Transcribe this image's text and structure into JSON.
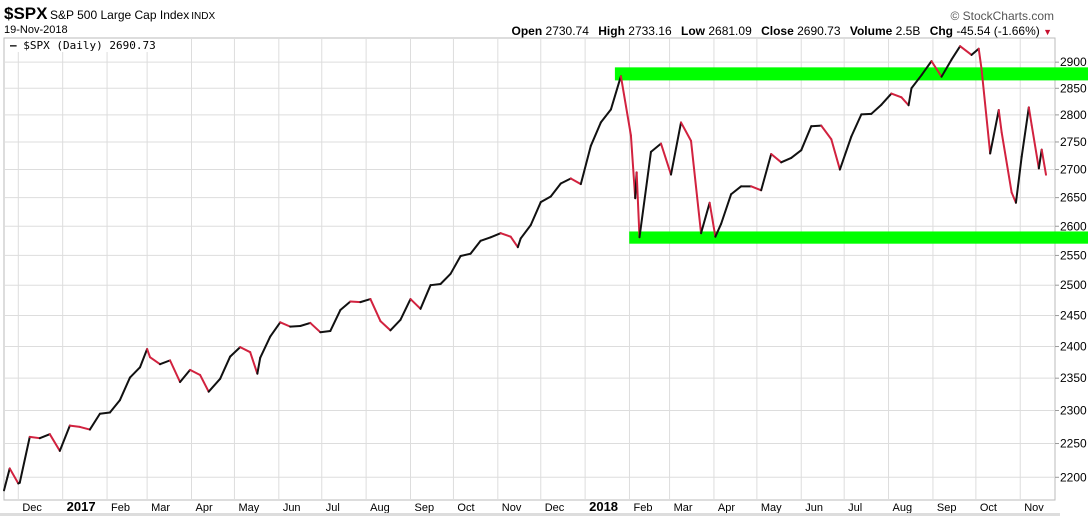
{
  "header": {
    "symbol": "$SPX",
    "name": "S&P 500 Large Cap Index",
    "exchange": "INDX",
    "date": "19-Nov-2018",
    "brand": "© StockCharts.com",
    "open_label": "Open",
    "open": "2730.74",
    "high_label": "High",
    "high": "2733.16",
    "low_label": "Low",
    "low": "2681.09",
    "close_label": "Close",
    "close": "2690.73",
    "volume_label": "Volume",
    "volume": "2.5B",
    "chg_label": "Chg",
    "chg": "-45.54 (-1.66%)",
    "chg_icon": "triangle-down-icon"
  },
  "legend": {
    "label": "$SPX (Daily) 2690.73"
  },
  "colors": {
    "up": "#111111",
    "down": "#d2223f",
    "band": "#00ff00",
    "grid": "#dddddd"
  },
  "chart_data": {
    "type": "line",
    "scale": "log",
    "ylim": [
      2167,
      2947
    ],
    "yticks": [
      2200,
      2250,
      2300,
      2350,
      2400,
      2450,
      2500,
      2550,
      2600,
      2650,
      2700,
      2750,
      2800,
      2850,
      2900
    ],
    "xticks": [
      {
        "label": "Dec",
        "date": "2016-12-01"
      },
      {
        "label": "2017",
        "date": "2017-01-01",
        "bold": true
      },
      {
        "label": "Feb",
        "date": "2017-02-01"
      },
      {
        "label": "Mar",
        "date": "2017-03-01"
      },
      {
        "label": "Apr",
        "date": "2017-04-01"
      },
      {
        "label": "May",
        "date": "2017-05-01"
      },
      {
        "label": "Jun",
        "date": "2017-06-01"
      },
      {
        "label": "Jul",
        "date": "2017-07-01"
      },
      {
        "label": "Aug",
        "date": "2017-08-01"
      },
      {
        "label": "Sep",
        "date": "2017-09-01"
      },
      {
        "label": "Oct",
        "date": "2017-10-01"
      },
      {
        "label": "Nov",
        "date": "2017-11-01"
      },
      {
        "label": "Dec",
        "date": "2017-12-01"
      },
      {
        "label": "2018",
        "date": "2018-01-01",
        "bold": true
      },
      {
        "label": "Feb",
        "date": "2018-02-01"
      },
      {
        "label": "Mar",
        "date": "2018-03-01"
      },
      {
        "label": "Apr",
        "date": "2018-04-01"
      },
      {
        "label": "May",
        "date": "2018-05-01"
      },
      {
        "label": "Jun",
        "date": "2018-06-01"
      },
      {
        "label": "Jul",
        "date": "2018-07-01"
      },
      {
        "label": "Aug",
        "date": "2018-08-01"
      },
      {
        "label": "Sep",
        "date": "2018-09-01"
      },
      {
        "label": "Oct",
        "date": "2018-10-01"
      },
      {
        "label": "Nov",
        "date": "2018-11-01"
      }
    ],
    "xrange": [
      "2016-11-21",
      "2018-11-19"
    ],
    "series": [
      {
        "name": "$SPX (Daily)",
        "points": [
          [
            "2016-11-21",
            2181
          ],
          [
            "2016-11-25",
            2213
          ],
          [
            "2016-12-01",
            2191
          ],
          [
            "2016-12-02",
            2192
          ],
          [
            "2016-12-09",
            2260
          ],
          [
            "2016-12-16",
            2258
          ],
          [
            "2016-12-23",
            2264
          ],
          [
            "2016-12-30",
            2239
          ],
          [
            "2017-01-06",
            2277
          ],
          [
            "2017-01-13",
            2275
          ],
          [
            "2017-01-20",
            2271
          ],
          [
            "2017-01-27",
            2295
          ],
          [
            "2017-02-03",
            2297
          ],
          [
            "2017-02-10",
            2316
          ],
          [
            "2017-02-17",
            2351
          ],
          [
            "2017-02-24",
            2367
          ],
          [
            "2017-03-01",
            2396
          ],
          [
            "2017-03-03",
            2383
          ],
          [
            "2017-03-10",
            2372
          ],
          [
            "2017-03-17",
            2378
          ],
          [
            "2017-03-24",
            2344
          ],
          [
            "2017-03-31",
            2363
          ],
          [
            "2017-04-07",
            2355
          ],
          [
            "2017-04-13",
            2329
          ],
          [
            "2017-04-21",
            2349
          ],
          [
            "2017-04-28",
            2384
          ],
          [
            "2017-05-05",
            2399
          ],
          [
            "2017-05-12",
            2391
          ],
          [
            "2017-05-17",
            2357
          ],
          [
            "2017-05-19",
            2382
          ],
          [
            "2017-05-26",
            2416
          ],
          [
            "2017-06-02",
            2439
          ],
          [
            "2017-06-09",
            2432
          ],
          [
            "2017-06-16",
            2433
          ],
          [
            "2017-06-23",
            2438
          ],
          [
            "2017-06-30",
            2423
          ],
          [
            "2017-07-07",
            2425
          ],
          [
            "2017-07-14",
            2459
          ],
          [
            "2017-07-21",
            2473
          ],
          [
            "2017-07-28",
            2472
          ],
          [
            "2017-08-04",
            2477
          ],
          [
            "2017-08-11",
            2441
          ],
          [
            "2017-08-18",
            2426
          ],
          [
            "2017-08-25",
            2443
          ],
          [
            "2017-09-01",
            2477
          ],
          [
            "2017-09-08",
            2461
          ],
          [
            "2017-09-15",
            2500
          ],
          [
            "2017-09-22",
            2502
          ],
          [
            "2017-09-29",
            2519
          ],
          [
            "2017-10-06",
            2549
          ],
          [
            "2017-10-13",
            2553
          ],
          [
            "2017-10-20",
            2575
          ],
          [
            "2017-10-27",
            2581
          ],
          [
            "2017-11-03",
            2588
          ],
          [
            "2017-11-10",
            2582
          ],
          [
            "2017-11-15",
            2564
          ],
          [
            "2017-11-17",
            2579
          ],
          [
            "2017-11-24",
            2602
          ],
          [
            "2017-12-01",
            2642
          ],
          [
            "2017-12-08",
            2652
          ],
          [
            "2017-12-15",
            2675
          ],
          [
            "2017-12-22",
            2684
          ],
          [
            "2017-12-29",
            2674
          ],
          [
            "2018-01-05",
            2743
          ],
          [
            "2018-01-12",
            2786
          ],
          [
            "2018-01-19",
            2810
          ],
          [
            "2018-01-26",
            2873
          ],
          [
            "2018-02-02",
            2762
          ],
          [
            "2018-02-05",
            2649
          ],
          [
            "2018-02-06",
            2695
          ],
          [
            "2018-02-08",
            2581
          ],
          [
            "2018-02-16",
            2732
          ],
          [
            "2018-02-23",
            2747
          ],
          [
            "2018-03-02",
            2691
          ],
          [
            "2018-03-09",
            2786
          ],
          [
            "2018-03-16",
            2752
          ],
          [
            "2018-03-23",
            2588
          ],
          [
            "2018-03-29",
            2641
          ],
          [
            "2018-04-02",
            2582
          ],
          [
            "2018-04-06",
            2604
          ],
          [
            "2018-04-13",
            2656
          ],
          [
            "2018-04-20",
            2670
          ],
          [
            "2018-04-27",
            2670
          ],
          [
            "2018-05-04",
            2663
          ],
          [
            "2018-05-11",
            2728
          ],
          [
            "2018-05-18",
            2713
          ],
          [
            "2018-05-25",
            2721
          ],
          [
            "2018-06-01",
            2735
          ],
          [
            "2018-06-08",
            2779
          ],
          [
            "2018-06-15",
            2780
          ],
          [
            "2018-06-22",
            2755
          ],
          [
            "2018-06-28",
            2700
          ],
          [
            "2018-07-06",
            2760
          ],
          [
            "2018-07-13",
            2801
          ],
          [
            "2018-07-20",
            2802
          ],
          [
            "2018-07-27",
            2819
          ],
          [
            "2018-08-03",
            2840
          ],
          [
            "2018-08-10",
            2833
          ],
          [
            "2018-08-15",
            2818
          ],
          [
            "2018-08-17",
            2850
          ],
          [
            "2018-08-24",
            2875
          ],
          [
            "2018-08-31",
            2902
          ],
          [
            "2018-09-07",
            2872
          ],
          [
            "2018-09-14",
            2905
          ],
          [
            "2018-09-20",
            2931
          ],
          [
            "2018-09-28",
            2914
          ],
          [
            "2018-10-03",
            2926
          ],
          [
            "2018-10-05",
            2886
          ],
          [
            "2018-10-11",
            2729
          ],
          [
            "2018-10-17",
            2809
          ],
          [
            "2018-10-19",
            2768
          ],
          [
            "2018-10-26",
            2659
          ],
          [
            "2018-10-29",
            2641
          ],
          [
            "2018-11-02",
            2723
          ],
          [
            "2018-11-07",
            2814
          ],
          [
            "2018-11-09",
            2781
          ],
          [
            "2018-11-14",
            2702
          ],
          [
            "2018-11-16",
            2736
          ],
          [
            "2018-11-19",
            2690.73
          ]
        ]
      }
    ],
    "bands": [
      {
        "from": 2865,
        "to": 2890,
        "start": "2018-01-26"
      },
      {
        "from": 2570,
        "to": 2591,
        "start": "2018-02-05"
      }
    ],
    "grid": true
  }
}
